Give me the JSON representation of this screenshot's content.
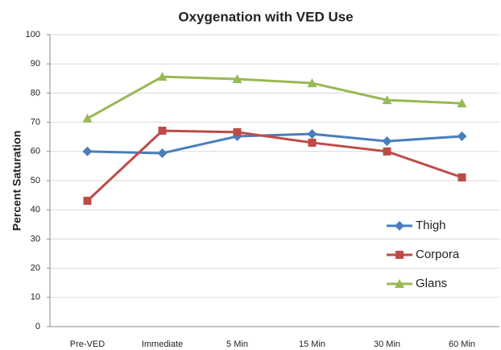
{
  "chart_data": {
    "type": "line",
    "title": "Oxygenation with VED Use",
    "y_label": "Percent Saturation",
    "categories": [
      "Pre-VED",
      "Immediate",
      "5 Min",
      "15 Min",
      "30 Min",
      "60 Min"
    ],
    "series": [
      {
        "name": "Thigh",
        "color": "#4a7ebb",
        "marker": "diamond",
        "values": [
          60,
          59.4,
          65.2,
          66,
          63.5,
          65.2
        ]
      },
      {
        "name": "Corpora",
        "color": "#be4b48",
        "marker": "square",
        "values": [
          43.1,
          67.1,
          66.6,
          63,
          60,
          51.1
        ]
      },
      {
        "name": "Glans",
        "color": "#98b954",
        "marker": "triangle",
        "values": [
          71.3,
          85.6,
          84.8,
          83.4,
          77.6,
          76.5
        ]
      }
    ],
    "ylim": [
      0,
      100
    ],
    "yticks": [
      0,
      10,
      20,
      30,
      40,
      50,
      60,
      70,
      80,
      90,
      100
    ],
    "grid": true,
    "legend": "lower right"
  }
}
